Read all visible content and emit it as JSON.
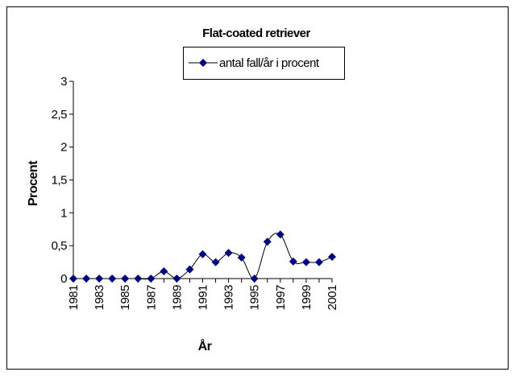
{
  "chart_data": {
    "type": "line",
    "title": "Flat-coated retriever",
    "x_label": "År",
    "y_label": "Procent",
    "categories": [
      "1981",
      null,
      "1983",
      null,
      "1985",
      null,
      "1987",
      null,
      "1989",
      null,
      "1991",
      null,
      "1993",
      null,
      "1995",
      null,
      "1997",
      null,
      "1999",
      null,
      "2001"
    ],
    "series": [
      {
        "name": "antal fall/år i procent",
        "color": "#000080",
        "line_color": "#000000",
        "values": [
          0,
          0,
          0,
          0,
          0,
          0,
          0,
          0.11,
          0,
          0.14,
          0.37,
          0.25,
          0.39,
          0.32,
          0,
          0.56,
          0.67,
          0.26,
          0.25,
          0.25,
          0.33
        ]
      }
    ],
    "ylim": [
      0,
      3
    ],
    "yticks": [
      0,
      {
        "value": 0.5,
        "label": "0,5"
      },
      1,
      {
        "value": 1.5,
        "label": "1,5"
      },
      2,
      {
        "value": 2.5,
        "label": "2,5"
      },
      3
    ],
    "smooth": true
  }
}
